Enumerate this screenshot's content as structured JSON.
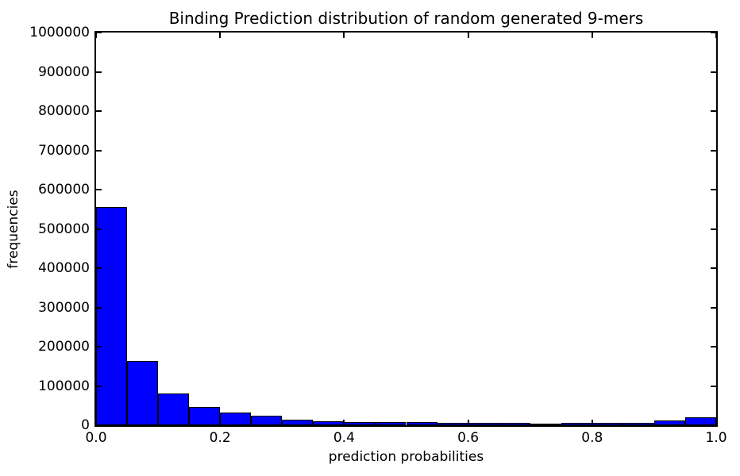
{
  "figure": {
    "title": "Binding Prediction distribution of random generated 9-mers",
    "xlabel": "prediction probabilities",
    "ylabel": "frequencies",
    "background_color": "#ffffff",
    "text_color": "#000000"
  },
  "chart_data": {
    "type": "bar",
    "subtype": "histogram",
    "title": "Binding Prediction distribution of random generated 9-mers",
    "xlabel": "prediction probabilities",
    "ylabel": "frequencies",
    "bar_color": "#0000ff",
    "bar_edge_color": "#000000",
    "grid": false,
    "legend": null,
    "xlim": [
      0.0,
      1.0
    ],
    "ylim": [
      0,
      1000000
    ],
    "x_tick_values": [
      0.0,
      0.2,
      0.4,
      0.6,
      0.8,
      1.0
    ],
    "x_tick_labels": [
      "0.0",
      "0.2",
      "0.4",
      "0.6",
      "0.8",
      "1.0"
    ],
    "y_tick_values": [
      0,
      100000,
      200000,
      300000,
      400000,
      500000,
      600000,
      700000,
      800000,
      900000,
      1000000
    ],
    "y_tick_labels": [
      "0",
      "100000",
      "200000",
      "300000",
      "400000",
      "500000",
      "600000",
      "700000",
      "800000",
      "900000",
      "1000000"
    ],
    "bin_width": 0.05,
    "bin_starts": [
      0.0,
      0.05,
      0.1,
      0.15,
      0.2,
      0.25,
      0.3,
      0.35,
      0.4,
      0.45,
      0.5,
      0.55,
      0.6,
      0.65,
      0.7,
      0.75,
      0.8,
      0.85,
      0.9,
      0.95
    ],
    "values": [
      555000,
      164000,
      80000,
      46000,
      32000,
      24000,
      15000,
      11000,
      9000,
      8000,
      7500,
      6500,
      6000,
      5500,
      5000,
      5500,
      6000,
      7000,
      12000,
      21000
    ]
  }
}
